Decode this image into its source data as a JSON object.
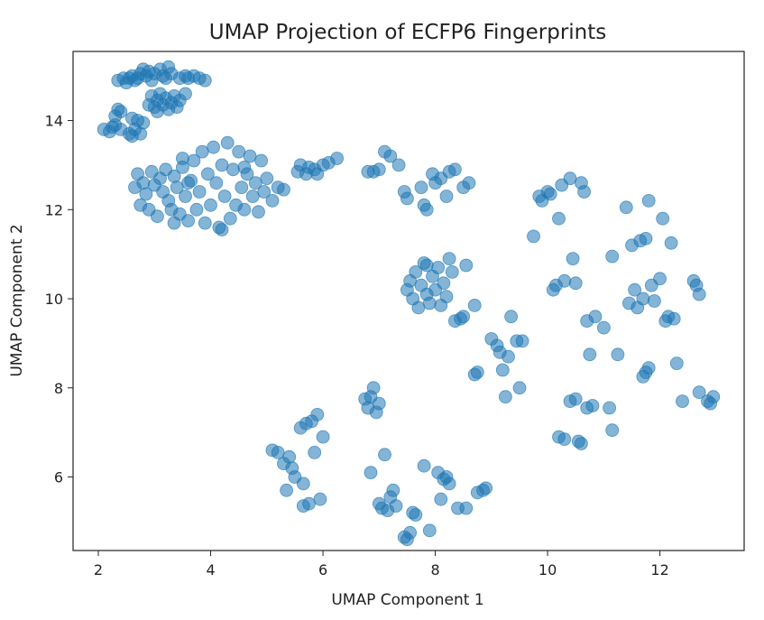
{
  "chart_data": {
    "type": "scatter",
    "title": "UMAP Projection of ECFP6 Fingerprints",
    "xlabel": "UMAP Component 1",
    "ylabel": "UMAP Component 2",
    "xlim": [
      1.55,
      13.5
    ],
    "ylim": [
      4.35,
      15.55
    ],
    "xticks": [
      2,
      4,
      6,
      8,
      10,
      12
    ],
    "yticks": [
      6,
      8,
      10,
      12,
      14
    ],
    "grid": false,
    "marker_color": "#1f77b4",
    "marker_alpha": 0.55,
    "series": [
      {
        "points": [
          [
            2.1,
            13.8
          ],
          [
            2.2,
            13.75
          ],
          [
            2.25,
            13.85
          ],
          [
            2.3,
            14.1
          ],
          [
            2.3,
            13.9
          ],
          [
            2.35,
            14.25
          ],
          [
            2.4,
            14.2
          ],
          [
            2.4,
            13.8
          ],
          [
            2.55,
            13.7
          ],
          [
            2.6,
            13.65
          ],
          [
            2.65,
            13.8
          ],
          [
            2.7,
            14.0
          ],
          [
            2.75,
            13.7
          ],
          [
            2.8,
            13.95
          ],
          [
            2.6,
            14.05
          ],
          [
            2.35,
            14.9
          ],
          [
            2.45,
            14.95
          ],
          [
            2.5,
            14.85
          ],
          [
            2.55,
            14.95
          ],
          [
            2.6,
            15.0
          ],
          [
            2.65,
            14.9
          ],
          [
            2.7,
            14.95
          ],
          [
            2.75,
            15.05
          ],
          [
            2.8,
            15.15
          ],
          [
            2.85,
            15.0
          ],
          [
            2.9,
            15.1
          ],
          [
            2.95,
            14.9
          ],
          [
            3.0,
            15.05
          ],
          [
            3.1,
            15.15
          ],
          [
            3.15,
            15.0
          ],
          [
            3.2,
            14.95
          ],
          [
            3.25,
            15.2
          ],
          [
            3.3,
            15.05
          ],
          [
            3.45,
            14.95
          ],
          [
            3.55,
            15.0
          ],
          [
            3.6,
            14.95
          ],
          [
            3.7,
            15.0
          ],
          [
            3.8,
            14.95
          ],
          [
            3.9,
            14.9
          ],
          [
            2.9,
            14.35
          ],
          [
            2.95,
            14.55
          ],
          [
            3.0,
            14.3
          ],
          [
            3.05,
            14.45
          ],
          [
            3.1,
            14.6
          ],
          [
            3.15,
            14.35
          ],
          [
            3.2,
            14.5
          ],
          [
            3.25,
            14.25
          ],
          [
            3.3,
            14.4
          ],
          [
            3.35,
            14.55
          ],
          [
            3.4,
            14.3
          ],
          [
            3.45,
            14.45
          ],
          [
            3.55,
            14.6
          ],
          [
            3.05,
            14.2
          ],
          [
            2.65,
            12.5
          ],
          [
            2.7,
            12.8
          ],
          [
            2.75,
            12.1
          ],
          [
            2.8,
            12.6
          ],
          [
            2.85,
            12.35
          ],
          [
            2.9,
            12.0
          ],
          [
            2.95,
            12.85
          ],
          [
            3.0,
            12.55
          ],
          [
            3.05,
            11.85
          ],
          [
            3.1,
            12.7
          ],
          [
            3.15,
            12.4
          ],
          [
            3.2,
            12.9
          ],
          [
            3.25,
            12.2
          ],
          [
            3.3,
            12.0
          ],
          [
            3.35,
            12.75
          ],
          [
            3.4,
            12.5
          ],
          [
            3.45,
            11.9
          ],
          [
            3.5,
            12.95
          ],
          [
            3.55,
            12.3
          ],
          [
            3.6,
            11.75
          ],
          [
            3.65,
            12.65
          ],
          [
            3.7,
            13.1
          ],
          [
            3.75,
            12.0
          ],
          [
            3.8,
            12.4
          ],
          [
            3.85,
            13.3
          ],
          [
            3.9,
            11.7
          ],
          [
            3.95,
            12.8
          ],
          [
            4.0,
            12.1
          ],
          [
            4.05,
            13.4
          ],
          [
            4.1,
            12.6
          ],
          [
            4.15,
            11.6
          ],
          [
            4.2,
            13.0
          ],
          [
            4.25,
            12.3
          ],
          [
            4.3,
            13.5
          ],
          [
            4.35,
            11.8
          ],
          [
            4.4,
            12.9
          ],
          [
            4.45,
            12.1
          ],
          [
            4.5,
            13.3
          ],
          [
            4.55,
            12.5
          ],
          [
            4.6,
            12.0
          ],
          [
            4.65,
            12.8
          ],
          [
            4.7,
            13.2
          ],
          [
            4.75,
            12.3
          ],
          [
            4.8,
            12.6
          ],
          [
            4.85,
            11.95
          ],
          [
            4.9,
            13.1
          ],
          [
            4.95,
            12.4
          ],
          [
            5.0,
            12.7
          ],
          [
            5.1,
            12.2
          ],
          [
            5.2,
            12.5
          ],
          [
            5.3,
            12.45
          ],
          [
            3.5,
            13.15
          ],
          [
            3.6,
            12.6
          ],
          [
            4.6,
            12.95
          ],
          [
            4.2,
            11.55
          ],
          [
            3.35,
            11.7
          ],
          [
            5.55,
            12.85
          ],
          [
            5.6,
            13.0
          ],
          [
            5.7,
            12.8
          ],
          [
            5.75,
            12.95
          ],
          [
            5.85,
            12.9
          ],
          [
            5.9,
            12.8
          ],
          [
            6.0,
            13.0
          ],
          [
            6.1,
            13.05
          ],
          [
            6.25,
            13.15
          ],
          [
            6.8,
            12.85
          ],
          [
            6.9,
            12.85
          ],
          [
            7.0,
            12.9
          ],
          [
            7.1,
            13.3
          ],
          [
            7.2,
            13.2
          ],
          [
            7.35,
            13.0
          ],
          [
            7.45,
            12.4
          ],
          [
            7.5,
            12.25
          ],
          [
            7.75,
            12.5
          ],
          [
            7.8,
            12.1
          ],
          [
            7.85,
            12.0
          ],
          [
            7.95,
            12.8
          ],
          [
            8.0,
            12.6
          ],
          [
            8.1,
            12.7
          ],
          [
            8.2,
            12.3
          ],
          [
            8.25,
            12.85
          ],
          [
            8.35,
            12.9
          ],
          [
            8.5,
            12.5
          ],
          [
            8.6,
            12.6
          ],
          [
            7.55,
            10.4
          ],
          [
            7.6,
            10.0
          ],
          [
            7.65,
            10.6
          ],
          [
            7.7,
            9.8
          ],
          [
            7.75,
            10.3
          ],
          [
            7.8,
            10.8
          ],
          [
            7.85,
            10.1
          ],
          [
            7.9,
            9.9
          ],
          [
            7.95,
            10.5
          ],
          [
            8.0,
            10.2
          ],
          [
            8.05,
            10.7
          ],
          [
            8.1,
            9.85
          ],
          [
            8.15,
            10.35
          ],
          [
            8.2,
            10.05
          ],
          [
            8.25,
            10.9
          ],
          [
            8.3,
            10.6
          ],
          [
            8.35,
            9.5
          ],
          [
            8.45,
            9.55
          ],
          [
            8.5,
            9.6
          ],
          [
            8.55,
            10.75
          ],
          [
            8.7,
            9.85
          ],
          [
            7.5,
            10.2
          ],
          [
            7.85,
            10.75
          ],
          [
            8.7,
            8.3
          ],
          [
            8.75,
            8.35
          ],
          [
            9.0,
            9.1
          ],
          [
            9.1,
            8.95
          ],
          [
            9.15,
            8.8
          ],
          [
            9.2,
            8.4
          ],
          [
            9.25,
            7.8
          ],
          [
            9.3,
            8.7
          ],
          [
            9.35,
            9.6
          ],
          [
            9.45,
            9.05
          ],
          [
            9.5,
            8.0
          ],
          [
            9.55,
            9.05
          ],
          [
            9.75,
            11.4
          ],
          [
            9.85,
            12.3
          ],
          [
            9.9,
            12.2
          ],
          [
            10.0,
            12.4
          ],
          [
            10.05,
            12.35
          ],
          [
            10.1,
            10.2
          ],
          [
            10.15,
            10.3
          ],
          [
            10.2,
            11.8
          ],
          [
            10.25,
            12.55
          ],
          [
            10.3,
            10.4
          ],
          [
            10.4,
            12.7
          ],
          [
            10.45,
            10.9
          ],
          [
            10.5,
            10.35
          ],
          [
            10.6,
            12.6
          ],
          [
            10.65,
            12.4
          ],
          [
            10.7,
            9.5
          ],
          [
            10.75,
            8.75
          ],
          [
            10.85,
            9.6
          ],
          [
            11.0,
            9.35
          ],
          [
            11.15,
            10.95
          ],
          [
            11.25,
            8.75
          ],
          [
            11.4,
            12.05
          ],
          [
            11.45,
            9.9
          ],
          [
            11.5,
            11.2
          ],
          [
            11.55,
            10.2
          ],
          [
            11.6,
            9.8
          ],
          [
            11.65,
            11.3
          ],
          [
            11.7,
            10.0
          ],
          [
            11.75,
            11.35
          ],
          [
            11.8,
            12.2
          ],
          [
            11.85,
            10.3
          ],
          [
            11.9,
            9.95
          ],
          [
            12.0,
            10.45
          ],
          [
            12.05,
            11.8
          ],
          [
            12.1,
            9.5
          ],
          [
            12.15,
            9.6
          ],
          [
            12.2,
            11.25
          ],
          [
            12.25,
            9.55
          ],
          [
            12.3,
            8.55
          ],
          [
            11.75,
            8.35
          ],
          [
            11.7,
            8.25
          ],
          [
            11.8,
            8.45
          ],
          [
            12.6,
            10.4
          ],
          [
            12.65,
            10.3
          ],
          [
            12.7,
            10.1
          ],
          [
            12.4,
            7.7
          ],
          [
            10.2,
            6.9
          ],
          [
            10.3,
            6.85
          ],
          [
            10.4,
            7.7
          ],
          [
            10.5,
            7.75
          ],
          [
            10.55,
            6.8
          ],
          [
            10.6,
            6.75
          ],
          [
            10.7,
            7.55
          ],
          [
            10.8,
            7.6
          ],
          [
            11.1,
            7.55
          ],
          [
            11.15,
            7.05
          ],
          [
            12.7,
            7.9
          ],
          [
            12.85,
            7.7
          ],
          [
            12.9,
            7.65
          ],
          [
            12.95,
            7.8
          ],
          [
            5.1,
            6.6
          ],
          [
            5.2,
            6.55
          ],
          [
            5.3,
            6.3
          ],
          [
            5.35,
            5.7
          ],
          [
            5.4,
            6.45
          ],
          [
            5.45,
            6.2
          ],
          [
            5.5,
            6.0
          ],
          [
            5.6,
            7.1
          ],
          [
            5.65,
            5.85
          ],
          [
            5.7,
            7.2
          ],
          [
            5.75,
            5.4
          ],
          [
            5.8,
            7.25
          ],
          [
            5.85,
            6.55
          ],
          [
            5.9,
            7.4
          ],
          [
            5.95,
            5.5
          ],
          [
            6.0,
            6.9
          ],
          [
            5.65,
            5.35
          ],
          [
            6.75,
            7.75
          ],
          [
            6.8,
            7.55
          ],
          [
            6.85,
            7.8
          ],
          [
            6.9,
            8.0
          ],
          [
            6.95,
            7.45
          ],
          [
            7.0,
            7.65
          ],
          [
            6.85,
            6.1
          ],
          [
            7.0,
            5.4
          ],
          [
            7.05,
            5.3
          ],
          [
            7.1,
            6.5
          ],
          [
            7.15,
            5.25
          ],
          [
            7.2,
            5.55
          ],
          [
            7.25,
            5.7
          ],
          [
            7.3,
            5.35
          ],
          [
            7.45,
            4.65
          ],
          [
            7.55,
            4.75
          ],
          [
            7.6,
            5.2
          ],
          [
            7.65,
            5.15
          ],
          [
            7.8,
            6.25
          ],
          [
            7.9,
            4.8
          ],
          [
            8.05,
            6.1
          ],
          [
            8.1,
            5.5
          ],
          [
            8.15,
            5.95
          ],
          [
            8.2,
            6.0
          ],
          [
            8.25,
            5.85
          ],
          [
            8.4,
            5.3
          ],
          [
            8.55,
            5.3
          ],
          [
            8.75,
            5.65
          ],
          [
            8.85,
            5.7
          ],
          [
            8.9,
            5.75
          ],
          [
            7.5,
            4.6
          ]
        ]
      }
    ]
  }
}
